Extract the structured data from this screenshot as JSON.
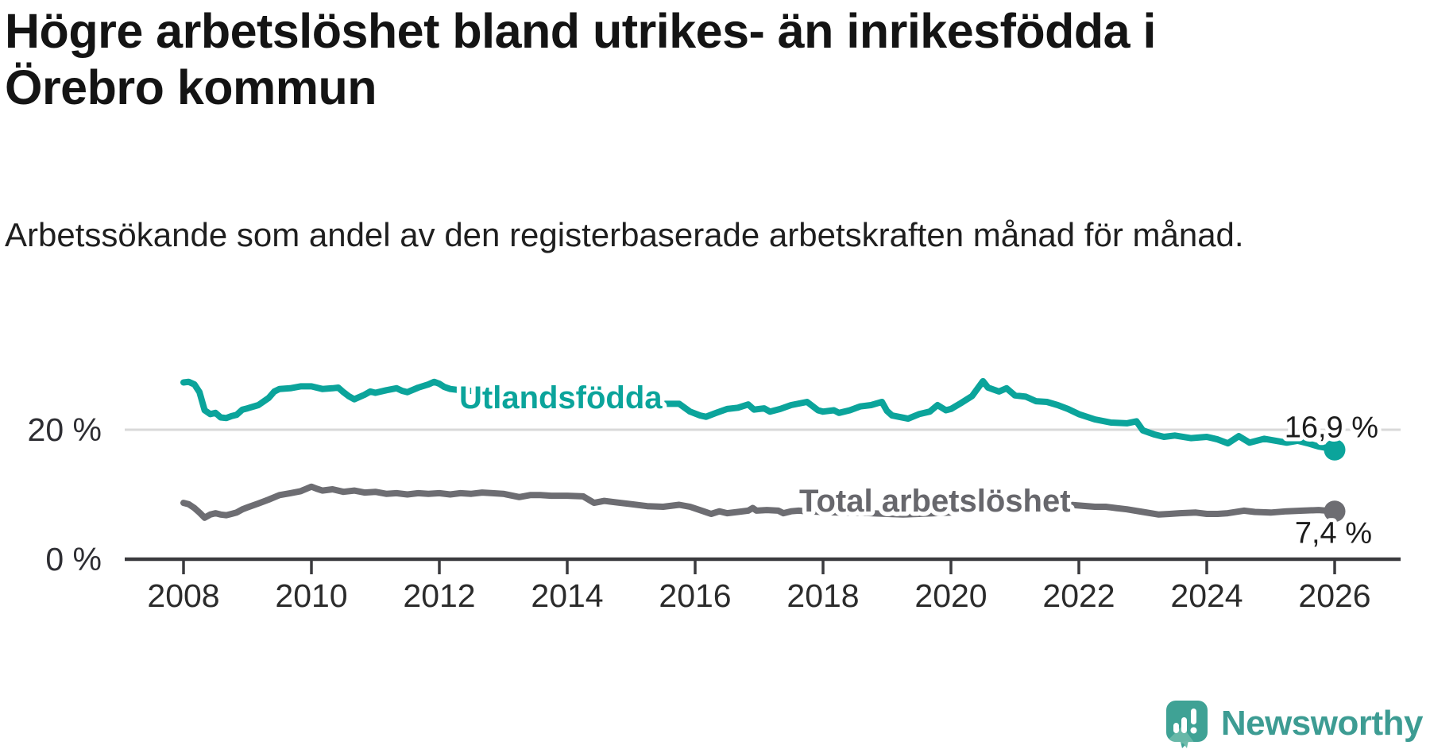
{
  "title": {
    "line1": "Högre arbetslöshet bland utrikes- än inrikesfödda i",
    "line2": "Örebro kommun"
  },
  "subtitle": "Arbetssökande som andel av den registerbaserade arbetskraften månad för månad.",
  "colors": {
    "teal": "#0ba49b",
    "gray_line": "#6d6d72",
    "gray_label": "#67676c",
    "axis": "#3a3a3e",
    "gridline": "#d9d9d9",
    "tick_text": "#2b2b2b",
    "value_text": "#1d1d1d",
    "brand_teal": "#3d9c93",
    "brand_teal_light": "#6fbcab"
  },
  "chart_data": {
    "type": "line",
    "unit": "%",
    "x_axis": {
      "ticks": [
        2008,
        2010,
        2012,
        2014,
        2016,
        2018,
        2020,
        2022,
        2024,
        2026
      ],
      "range": [
        2007.8,
        2027.0
      ]
    },
    "y_axis": {
      "gridlines": [
        {
          "value": 20,
          "label": "20 %"
        },
        {
          "value": 0,
          "label": "0 %"
        }
      ],
      "ylim": [
        0,
        30
      ],
      "grid": "single light line at 20 %"
    },
    "legend_position": "inline labels on lines",
    "series": [
      {
        "name": "Utlandsfödda",
        "color": "#0ba49b",
        "end_label": "16,9 %",
        "last_value": 16.9,
        "points": [
          [
            2008.0,
            27.3
          ],
          [
            2008.08,
            27.4
          ],
          [
            2008.17,
            27.0
          ],
          [
            2008.25,
            25.8
          ],
          [
            2008.33,
            23.0
          ],
          [
            2008.42,
            22.4
          ],
          [
            2008.5,
            22.6
          ],
          [
            2008.58,
            21.9
          ],
          [
            2008.67,
            21.8
          ],
          [
            2008.75,
            22.1
          ],
          [
            2008.83,
            22.3
          ],
          [
            2008.92,
            23.1
          ],
          [
            2009.0,
            23.3
          ],
          [
            2009.17,
            23.8
          ],
          [
            2009.33,
            24.9
          ],
          [
            2009.42,
            25.9
          ],
          [
            2009.5,
            26.3
          ],
          [
            2009.67,
            26.4
          ],
          [
            2009.83,
            26.7
          ],
          [
            2010.0,
            26.7
          ],
          [
            2010.17,
            26.3
          ],
          [
            2010.33,
            26.4
          ],
          [
            2010.42,
            26.5
          ],
          [
            2010.5,
            25.8
          ],
          [
            2010.58,
            25.2
          ],
          [
            2010.67,
            24.7
          ],
          [
            2010.83,
            25.4
          ],
          [
            2010.92,
            25.9
          ],
          [
            2011.0,
            25.7
          ],
          [
            2011.17,
            26.1
          ],
          [
            2011.33,
            26.4
          ],
          [
            2011.42,
            26.0
          ],
          [
            2011.5,
            25.8
          ],
          [
            2011.67,
            26.5
          ],
          [
            2011.83,
            27.0
          ],
          [
            2011.92,
            27.4
          ],
          [
            2012.0,
            27.1
          ],
          [
            2012.08,
            26.6
          ],
          [
            2012.17,
            26.3
          ],
          [
            2012.33,
            26.1
          ],
          [
            2012.5,
            26.0
          ],
          [
            2012.75,
            25.8
          ],
          [
            2013.0,
            25.6
          ],
          [
            2013.25,
            25.4
          ],
          [
            2013.5,
            25.2
          ],
          [
            2013.75,
            25.0
          ],
          [
            2014.0,
            24.8
          ],
          [
            2014.25,
            24.6
          ],
          [
            2014.5,
            24.4
          ],
          [
            2014.75,
            24.3
          ],
          [
            2015.0,
            24.2
          ],
          [
            2015.25,
            24.1
          ],
          [
            2015.5,
            24.0
          ],
          [
            2015.75,
            24.0
          ],
          [
            2015.92,
            22.8
          ],
          [
            2016.08,
            22.2
          ],
          [
            2016.17,
            22.0
          ],
          [
            2016.33,
            22.6
          ],
          [
            2016.5,
            23.2
          ],
          [
            2016.67,
            23.4
          ],
          [
            2016.83,
            23.9
          ],
          [
            2016.92,
            23.1
          ],
          [
            2017.08,
            23.3
          ],
          [
            2017.17,
            22.8
          ],
          [
            2017.33,
            23.2
          ],
          [
            2017.5,
            23.8
          ],
          [
            2017.75,
            24.3
          ],
          [
            2017.92,
            23.0
          ],
          [
            2018.0,
            22.8
          ],
          [
            2018.17,
            23.0
          ],
          [
            2018.25,
            22.6
          ],
          [
            2018.42,
            23.0
          ],
          [
            2018.58,
            23.6
          ],
          [
            2018.75,
            23.8
          ],
          [
            2018.92,
            24.3
          ],
          [
            2019.0,
            22.9
          ],
          [
            2019.08,
            22.2
          ],
          [
            2019.33,
            21.7
          ],
          [
            2019.5,
            22.4
          ],
          [
            2019.67,
            22.8
          ],
          [
            2019.79,
            23.8
          ],
          [
            2019.92,
            23.0
          ],
          [
            2020.0,
            23.2
          ],
          [
            2020.17,
            24.2
          ],
          [
            2020.33,
            25.2
          ],
          [
            2020.5,
            27.5
          ],
          [
            2020.58,
            26.5
          ],
          [
            2020.75,
            25.9
          ],
          [
            2020.87,
            26.4
          ],
          [
            2021.0,
            25.3
          ],
          [
            2021.17,
            25.1
          ],
          [
            2021.33,
            24.4
          ],
          [
            2021.5,
            24.3
          ],
          [
            2021.67,
            23.8
          ],
          [
            2021.83,
            23.2
          ],
          [
            2022.0,
            22.4
          ],
          [
            2022.25,
            21.6
          ],
          [
            2022.5,
            21.1
          ],
          [
            2022.75,
            21.0
          ],
          [
            2022.9,
            21.3
          ],
          [
            2023.0,
            19.9
          ],
          [
            2023.17,
            19.3
          ],
          [
            2023.33,
            18.9
          ],
          [
            2023.5,
            19.1
          ],
          [
            2023.75,
            18.7
          ],
          [
            2024.0,
            18.9
          ],
          [
            2024.17,
            18.5
          ],
          [
            2024.33,
            17.9
          ],
          [
            2024.5,
            19.0
          ],
          [
            2024.67,
            18.0
          ],
          [
            2024.9,
            18.6
          ],
          [
            2025.08,
            18.3
          ],
          [
            2025.25,
            18.0
          ],
          [
            2025.42,
            18.3
          ],
          [
            2025.58,
            17.9
          ],
          [
            2025.75,
            17.4
          ],
          [
            2025.92,
            17.1
          ],
          [
            2026.0,
            16.9
          ]
        ]
      },
      {
        "name": "Total arbetslöshet",
        "color": "#6d6d72",
        "end_label": "7,4 %",
        "last_value": 7.4,
        "points": [
          [
            2008.0,
            8.7
          ],
          [
            2008.08,
            8.5
          ],
          [
            2008.17,
            7.9
          ],
          [
            2008.25,
            7.2
          ],
          [
            2008.33,
            6.4
          ],
          [
            2008.42,
            6.9
          ],
          [
            2008.5,
            7.1
          ],
          [
            2008.58,
            6.9
          ],
          [
            2008.67,
            6.8
          ],
          [
            2008.75,
            7.0
          ],
          [
            2008.83,
            7.2
          ],
          [
            2008.92,
            7.7
          ],
          [
            2009.0,
            8.0
          ],
          [
            2009.17,
            8.6
          ],
          [
            2009.33,
            9.2
          ],
          [
            2009.5,
            9.9
          ],
          [
            2009.67,
            10.2
          ],
          [
            2009.83,
            10.5
          ],
          [
            2010.0,
            11.2
          ],
          [
            2010.08,
            10.9
          ],
          [
            2010.17,
            10.6
          ],
          [
            2010.33,
            10.8
          ],
          [
            2010.5,
            10.4
          ],
          [
            2010.67,
            10.6
          ],
          [
            2010.83,
            10.3
          ],
          [
            2011.0,
            10.4
          ],
          [
            2011.17,
            10.1
          ],
          [
            2011.33,
            10.2
          ],
          [
            2011.5,
            10.0
          ],
          [
            2011.67,
            10.2
          ],
          [
            2011.83,
            10.1
          ],
          [
            2012.0,
            10.2
          ],
          [
            2012.17,
            10.0
          ],
          [
            2012.33,
            10.2
          ],
          [
            2012.5,
            10.1
          ],
          [
            2012.67,
            10.3
          ],
          [
            2012.83,
            10.2
          ],
          [
            2013.0,
            10.1
          ],
          [
            2013.25,
            9.6
          ],
          [
            2013.42,
            9.9
          ],
          [
            2013.58,
            9.9
          ],
          [
            2013.75,
            9.8
          ],
          [
            2014.0,
            9.8
          ],
          [
            2014.25,
            9.7
          ],
          [
            2014.42,
            8.7
          ],
          [
            2014.58,
            9.0
          ],
          [
            2014.75,
            8.8
          ],
          [
            2015.0,
            8.5
          ],
          [
            2015.25,
            8.2
          ],
          [
            2015.5,
            8.1
          ],
          [
            2015.75,
            8.4
          ],
          [
            2015.92,
            8.1
          ],
          [
            2016.13,
            7.4
          ],
          [
            2016.25,
            7.0
          ],
          [
            2016.38,
            7.4
          ],
          [
            2016.5,
            7.1
          ],
          [
            2016.67,
            7.3
          ],
          [
            2016.83,
            7.5
          ],
          [
            2016.9,
            7.9
          ],
          [
            2016.96,
            7.5
          ],
          [
            2017.12,
            7.6
          ],
          [
            2017.3,
            7.5
          ],
          [
            2017.38,
            7.1
          ],
          [
            2017.5,
            7.4
          ],
          [
            2017.62,
            7.5
          ],
          [
            2017.75,
            7.4
          ],
          [
            2018.0,
            7.3
          ],
          [
            2018.25,
            7.2
          ],
          [
            2018.5,
            7.2
          ],
          [
            2018.75,
            7.1
          ],
          [
            2019.0,
            7.0
          ],
          [
            2019.25,
            6.9
          ],
          [
            2019.5,
            7.0
          ],
          [
            2019.75,
            7.1
          ],
          [
            2020.0,
            7.2
          ],
          [
            2020.25,
            8.6
          ],
          [
            2020.5,
            9.7
          ],
          [
            2020.75,
            9.5
          ],
          [
            2021.0,
            9.3
          ],
          [
            2021.25,
            9.0
          ],
          [
            2021.5,
            8.7
          ],
          [
            2021.75,
            8.5
          ],
          [
            2022.0,
            8.3
          ],
          [
            2022.25,
            8.1
          ],
          [
            2022.42,
            8.1
          ],
          [
            2022.58,
            7.9
          ],
          [
            2022.75,
            7.7
          ],
          [
            2023.0,
            7.3
          ],
          [
            2023.25,
            6.9
          ],
          [
            2023.42,
            7.0
          ],
          [
            2023.58,
            7.1
          ],
          [
            2023.83,
            7.2
          ],
          [
            2024.0,
            7.0
          ],
          [
            2024.17,
            7.0
          ],
          [
            2024.33,
            7.1
          ],
          [
            2024.58,
            7.5
          ],
          [
            2024.75,
            7.3
          ],
          [
            2025.0,
            7.2
          ],
          [
            2025.25,
            7.4
          ],
          [
            2025.5,
            7.5
          ],
          [
            2025.75,
            7.6
          ],
          [
            2026.0,
            7.4
          ]
        ]
      }
    ]
  },
  "footer": {
    "brand": "Newsworthy",
    "logo_icon": "speech-bubble-bar-chart-exclamation"
  }
}
